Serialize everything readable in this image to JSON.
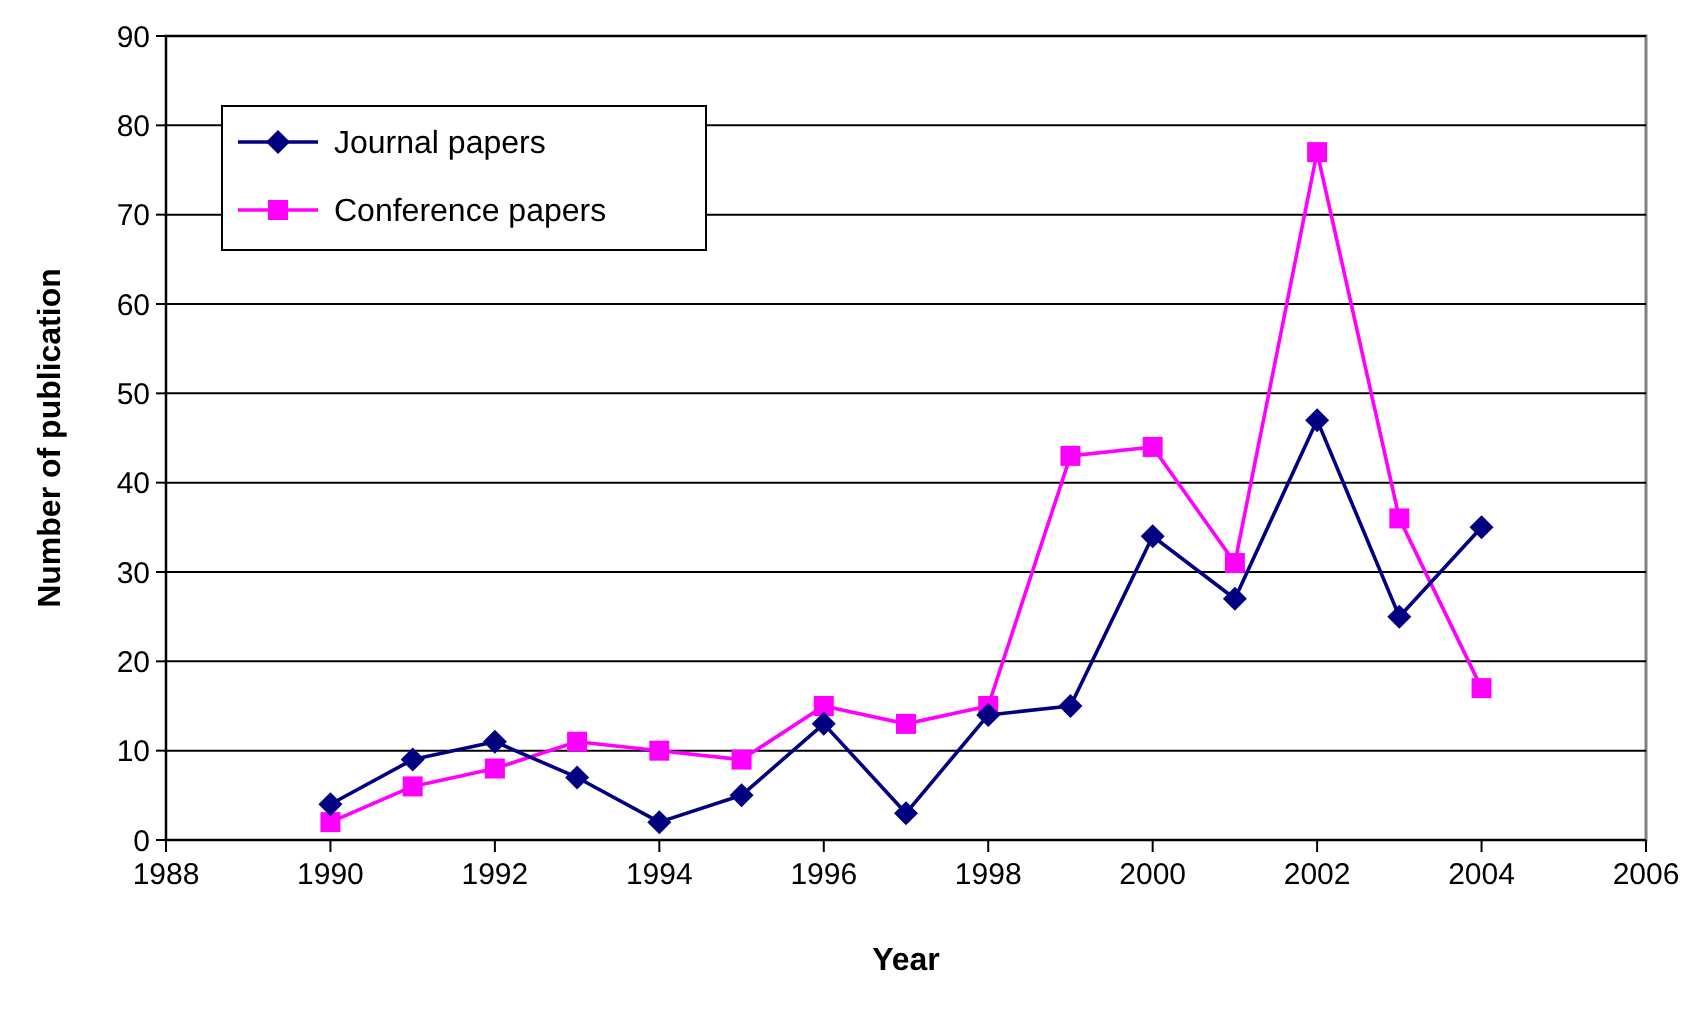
{
  "chart_data": {
    "type": "line",
    "xlabel": "Year",
    "ylabel": "Number of publication",
    "x": [
      1990,
      1991,
      1992,
      1993,
      1994,
      1995,
      1996,
      1997,
      1998,
      1999,
      2000,
      2001,
      2002,
      2003,
      2004
    ],
    "series": [
      {
        "name": "Journal papers",
        "color": "#000080",
        "marker": "diamond",
        "values": [
          4,
          9,
          11,
          7,
          2,
          5,
          13,
          3,
          14,
          15,
          34,
          27,
          47,
          25,
          35
        ]
      },
      {
        "name": "Conference papers",
        "color": "#ff00ff",
        "marker": "square",
        "values": [
          2,
          6,
          8,
          11,
          10,
          9,
          15,
          13,
          15,
          43,
          44,
          31,
          77,
          36,
          17
        ]
      }
    ],
    "xlim": [
      1988,
      2006
    ],
    "xticks": [
      1988,
      1990,
      1992,
      1994,
      1996,
      1998,
      2000,
      2002,
      2004,
      2006
    ],
    "ylim": [
      0,
      90
    ],
    "yticks": [
      0,
      10,
      20,
      30,
      40,
      50,
      60,
      70,
      80,
      90
    ],
    "grid": "y",
    "legend": "top left"
  }
}
